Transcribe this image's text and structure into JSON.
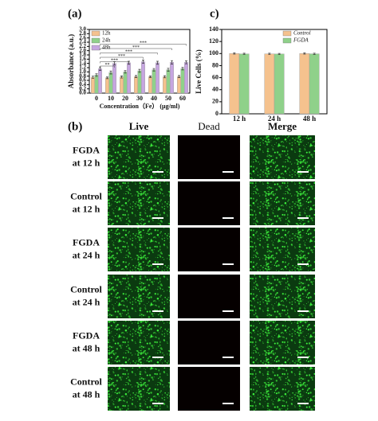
{
  "chart_data": [
    {
      "type": "bar",
      "panel_label": "(a)",
      "ylabel": "Absorbance (a.u.)",
      "xlabel": "Concentration（Fe） (μg/ml)",
      "categories": [
        "0",
        "10",
        "20",
        "30",
        "40",
        "50",
        "60"
      ],
      "series": [
        {
          "name": "12h",
          "color": "#f5c28e",
          "values": [
            0.75,
            0.72,
            0.76,
            0.78,
            0.77,
            0.77,
            0.78
          ],
          "errors": [
            0.05,
            0.04,
            0.05,
            0.05,
            0.04,
            0.05,
            0.05
          ]
        },
        {
          "name": "24h",
          "color": "#8fd18a",
          "values": [
            0.85,
            0.97,
            1.0,
            1.05,
            1.1,
            1.1,
            1.15
          ],
          "errors": [
            0.06,
            0.07,
            0.06,
            0.07,
            0.06,
            0.07,
            0.06
          ]
        },
        {
          "name": "48h",
          "color": "#c6a6e0",
          "values": [
            1.15,
            1.4,
            1.43,
            1.48,
            1.43,
            1.45,
            1.45
          ],
          "errors": [
            0.08,
            0.08,
            0.07,
            0.08,
            0.07,
            0.08,
            0.07
          ]
        }
      ],
      "ylim": [
        0,
        3.0
      ],
      "yticks": [
        {
          "value": 0,
          "label": "0.0"
        },
        0.2,
        0.4,
        0.6,
        0.8,
        {
          "value": 1,
          "label": "1.0"
        },
        1.2,
        1.4,
        1.6,
        1.8,
        {
          "value": 2,
          "label": "2.0"
        },
        2.2,
        2.4,
        2.6,
        2.8,
        {
          "value": 3,
          "label": "3.0"
        }
      ],
      "legend": "upper left",
      "annotations": [
        "**",
        "***",
        "***",
        "***",
        "***",
        "***"
      ]
    },
    {
      "type": "bar",
      "panel_label": "c)",
      "ylabel": "Live Cells (%)",
      "categories": [
        "12 h",
        "24 h",
        "48 h"
      ],
      "series": [
        {
          "name": "Control",
          "color": "#f5c28e",
          "values": [
            100,
            99.5,
            100
          ],
          "errors": [
            1,
            1,
            1
          ]
        },
        {
          "name": "FGDA",
          "color": "#8fd18a",
          "values": [
            99.5,
            99.3,
            99.6
          ],
          "errors": [
            1,
            1,
            1
          ]
        }
      ],
      "ylim": [
        0,
        140
      ],
      "yticks": [
        0,
        20,
        40,
        60,
        80,
        100,
        120,
        140
      ],
      "legend": "upper right"
    }
  ],
  "figure_b": {
    "panel_label": "(b)",
    "columns": [
      "Live",
      "Dead",
      "Merge"
    ],
    "rows": [
      [
        "FGDA",
        "at 12 h"
      ],
      [
        "Control",
        "at 12 h"
      ],
      [
        "FGDA",
        "at 24 h"
      ],
      [
        "Control",
        "at 24 h"
      ],
      [
        "FGDA",
        "at 48 h"
      ],
      [
        "Control",
        "at 48 h"
      ]
    ]
  }
}
